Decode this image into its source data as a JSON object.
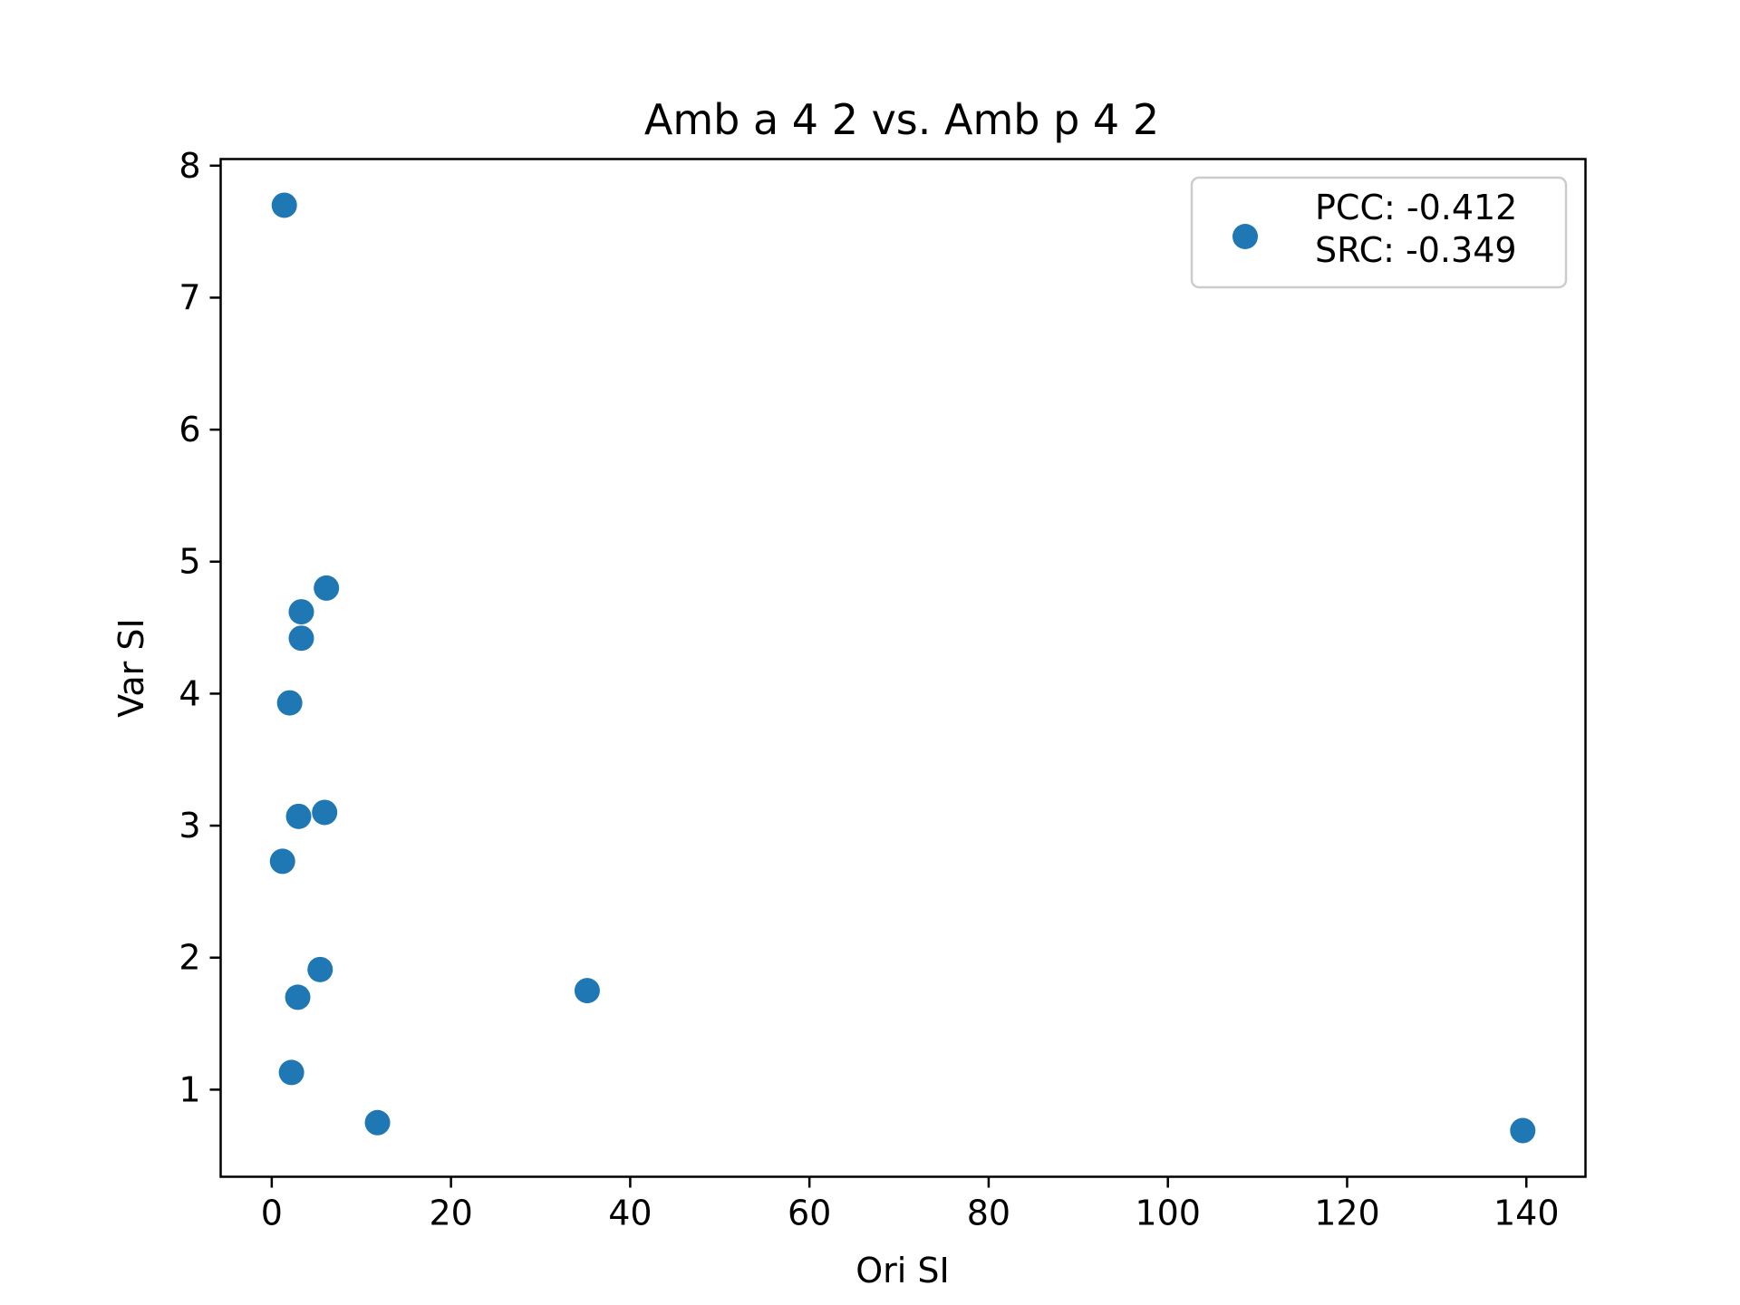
{
  "chart_data": {
    "type": "scatter",
    "title": "Amb a 4 2 vs. Amb p 4 2",
    "xlabel": "Ori SI",
    "ylabel": "Var SI",
    "xlim": [
      -5.7,
      146.6
    ],
    "ylim": [
      0.34,
      8.05
    ],
    "xticks": [
      0,
      20,
      40,
      60,
      80,
      100,
      120,
      140
    ],
    "yticks": [
      1,
      2,
      3,
      4,
      5,
      6,
      7,
      8
    ],
    "grid": false,
    "legend_position": "top-right",
    "colors": {
      "series": "#1f77b4"
    },
    "series": [
      {
        "name": "PCC: -0.412\nSRC: -0.349",
        "legend_lines": [
          "PCC: -0.412",
          "SRC: -0.349"
        ],
        "points": [
          {
            "x": 1.4,
            "y": 7.7
          },
          {
            "x": 6.1,
            "y": 4.8
          },
          {
            "x": 3.3,
            "y": 4.62
          },
          {
            "x": 3.3,
            "y": 4.42
          },
          {
            "x": 2.0,
            "y": 3.93
          },
          {
            "x": 3.0,
            "y": 3.07
          },
          {
            "x": 5.9,
            "y": 3.1
          },
          {
            "x": 1.2,
            "y": 2.73
          },
          {
            "x": 5.4,
            "y": 1.91
          },
          {
            "x": 2.9,
            "y": 1.7
          },
          {
            "x": 35.2,
            "y": 1.75
          },
          {
            "x": 2.2,
            "y": 1.13
          },
          {
            "x": 11.8,
            "y": 0.75
          },
          {
            "x": 139.6,
            "y": 0.69
          }
        ]
      }
    ]
  }
}
